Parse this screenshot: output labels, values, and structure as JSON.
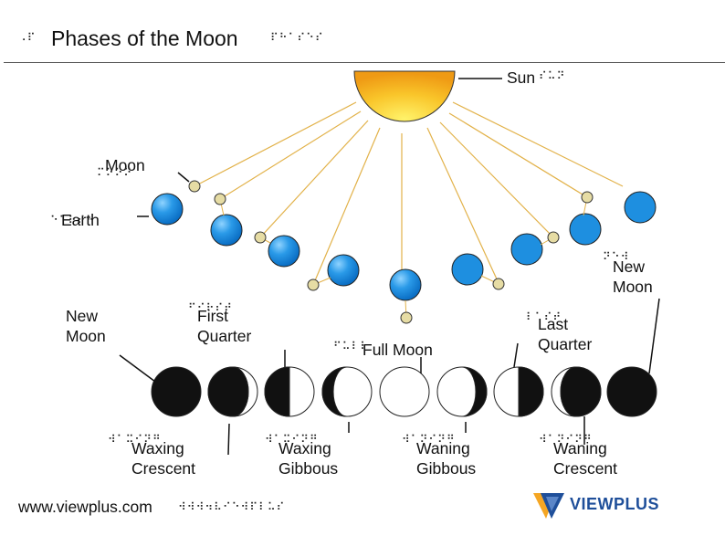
{
  "title": "Phases of the Moon",
  "labels": {
    "sun": "Sun",
    "moon": "Moon",
    "earth": "Earth",
    "new_moon_right": [
      "New",
      "Moon"
    ],
    "new_moon_left": [
      "New",
      "Moon"
    ],
    "first_quarter": [
      "First",
      "Quarter"
    ],
    "full_moon": "Full Moon",
    "last_quarter": [
      "Last",
      "Quarter"
    ],
    "waxing_crescent": [
      "Waxing",
      "Crescent"
    ],
    "waxing_gibbous": [
      "Waxing",
      "Gibbous"
    ],
    "waning_gibbous": [
      "Waning",
      "Gibbous"
    ],
    "waning_crescent": [
      "Waning",
      "Crescent"
    ]
  },
  "footer": {
    "url": "www.viewplus.com",
    "brand": "VIEWPLUS"
  },
  "colors": {
    "earth": "#1e8fe0",
    "moon": "#e6dca4",
    "sun": "#f8b21a",
    "sunline": "#e2b24a",
    "logo_blue": "#1f4f9a",
    "logo_orange": "#f5a623"
  },
  "phases": [
    {
      "name": "new-moon",
      "lit": "none"
    },
    {
      "name": "waxing-crescent",
      "lit": "right-crescent"
    },
    {
      "name": "first-quarter",
      "lit": "left-half-dark"
    },
    {
      "name": "waxing-gibbous",
      "lit": "left-crescent-dark"
    },
    {
      "name": "full-moon",
      "lit": "full"
    },
    {
      "name": "waning-gibbous",
      "lit": "right-crescent-dark"
    },
    {
      "name": "last-quarter",
      "lit": "right-half-dark"
    },
    {
      "name": "waning-crescent",
      "lit": "left-crescent"
    },
    {
      "name": "new-moon-2",
      "lit": "none"
    }
  ]
}
